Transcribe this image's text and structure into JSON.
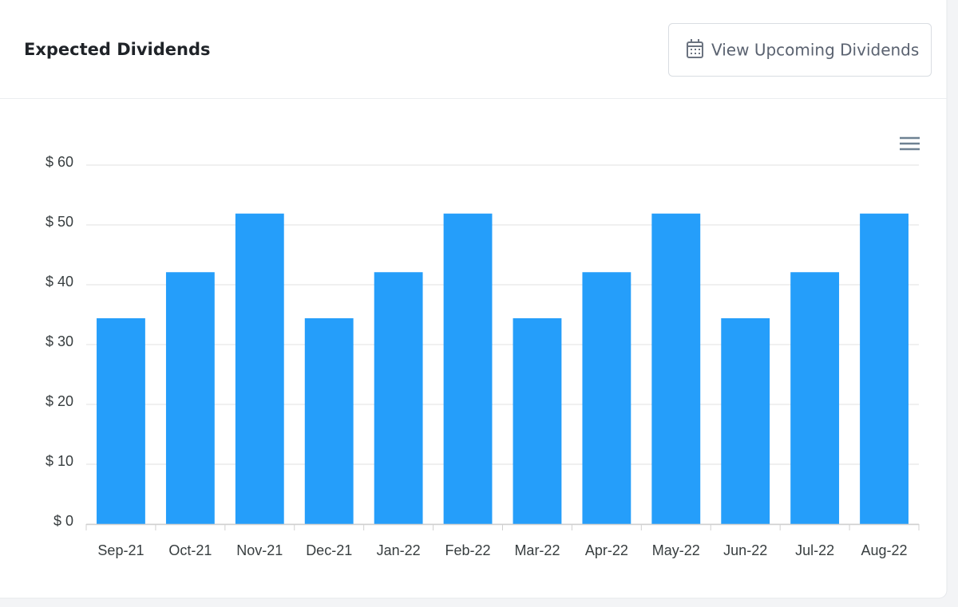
{
  "header": {
    "title": "Expected Dividends",
    "button": "View Upcoming Dividends"
  },
  "chart_data": {
    "type": "bar",
    "categories": [
      "Sep-21",
      "Oct-21",
      "Nov-21",
      "Dec-21",
      "Jan-22",
      "Feb-22",
      "Mar-22",
      "Apr-22",
      "May-22",
      "Jun-22",
      "Jul-22",
      "Aug-22"
    ],
    "values": [
      34.4,
      42.1,
      51.9,
      34.4,
      42.1,
      51.9,
      34.4,
      42.1,
      51.9,
      34.4,
      42.1,
      51.9
    ],
    "color": "#259efa",
    "ylim": [
      0,
      60
    ],
    "yticks": [
      {
        "value": 0,
        "label": "$ 0"
      },
      {
        "value": 10,
        "label": "$ 10"
      },
      {
        "value": 20,
        "label": "$ 20"
      },
      {
        "value": 30,
        "label": "$ 30"
      },
      {
        "value": 40,
        "label": "$ 40"
      },
      {
        "value": 50,
        "label": "$ 50"
      },
      {
        "value": 60,
        "label": "$ 60"
      }
    ],
    "grid": true
  }
}
